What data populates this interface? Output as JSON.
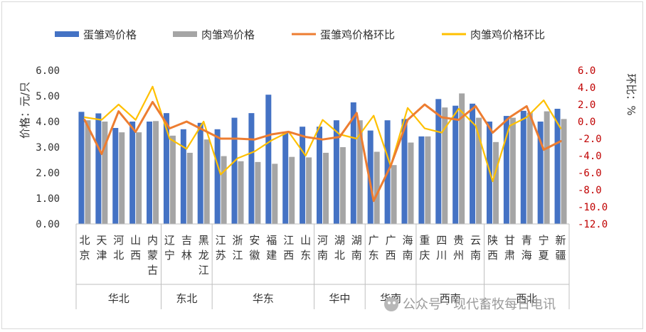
{
  "chart_data": {
    "type": "bar",
    "categories": [
      "北京",
      "天津",
      "河北",
      "山西",
      "内蒙古",
      "辽宁",
      "吉林",
      "黑龙江",
      "江苏",
      "浙江",
      "安徽",
      "福建",
      "江西",
      "山东",
      "河南",
      "湖北",
      "湖南",
      "广东",
      "广西",
      "海南",
      "重庆",
      "四川",
      "贵州",
      "云南",
      "陕西",
      "甘肃",
      "青海",
      "宁夏",
      "新疆"
    ],
    "regions": [
      {
        "name": "华北",
        "count": 5
      },
      {
        "name": "东北",
        "count": 3
      },
      {
        "name": "华东",
        "count": 6
      },
      {
        "name": "华中",
        "count": 3
      },
      {
        "name": "华南",
        "count": 3
      },
      {
        "name": "西南",
        "count": 4
      },
      {
        "name": "西北",
        "count": 5
      }
    ],
    "series": [
      {
        "name": "蛋雏鸡价格",
        "type": "bar",
        "axis": "left",
        "color": "#4472c4",
        "values": [
          4.38,
          4.32,
          3.75,
          4.0,
          4.0,
          4.33,
          3.7,
          3.95,
          3.7,
          4.15,
          4.33,
          5.05,
          3.6,
          3.8,
          3.8,
          4.05,
          4.75,
          3.65,
          4.05,
          4.1,
          3.42,
          4.88,
          4.62,
          4.7,
          4.0,
          4.22,
          4.42,
          4.0,
          4.5
        ]
      },
      {
        "name": "肉雏鸡价格",
        "type": "bar",
        "axis": "left",
        "color": "#a5a5a5",
        "values": [
          4.05,
          4.0,
          3.58,
          3.58,
          4.02,
          3.45,
          2.78,
          3.3,
          2.65,
          2.45,
          2.42,
          2.35,
          2.62,
          2.6,
          2.78,
          3.0,
          4.05,
          2.82,
          2.3,
          3.18,
          3.42,
          4.55,
          5.1,
          4.15,
          3.2,
          4.15,
          4.35,
          4.4,
          4.1
        ]
      },
      {
        "name": "蛋雏鸡价格环比",
        "type": "line",
        "axis": "right",
        "color": "#ed7d31",
        "values": [
          0.2,
          -3.8,
          1.2,
          -1.2,
          2.3,
          -0.8,
          0.0,
          -1.0,
          -2.0,
          -2.0,
          -2.1,
          -1.5,
          -1.2,
          -1.8,
          -2.1,
          -1.8,
          1.0,
          -9.3,
          -5.2,
          0.2,
          2.0,
          0.5,
          0.2,
          1.8,
          -1.3,
          0.5,
          1.8,
          -3.3,
          -2.3
        ]
      },
      {
        "name": "肉雏鸡价格环比",
        "type": "line",
        "axis": "right",
        "color": "#ffc000",
        "values": [
          0.5,
          0.2,
          2.0,
          0.2,
          4.1,
          -2.0,
          -3.2,
          0.0,
          -6.2,
          -4.3,
          -3.5,
          -2.2,
          -1.2,
          -4.0,
          0.2,
          -1.5,
          -2.0,
          0.7,
          -5.2,
          1.6,
          -0.8,
          -1.3,
          1.5,
          -0.5,
          -7.0,
          -0.5,
          0.5,
          2.5,
          -0.8
        ]
      }
    ],
    "y_left": {
      "label": "价格：元/只",
      "min": 0,
      "max": 6,
      "ticks": [
        "0.00",
        "1.00",
        "2.00",
        "3.00",
        "4.00",
        "5.00",
        "6.00"
      ]
    },
    "y_right": {
      "label": "环比：%",
      "min": -12,
      "max": 6,
      "ticks": [
        "6.0",
        "4.0",
        "2.0",
        "0.0",
        "-2.0",
        "-4.0",
        "-6.0",
        "-8.0",
        "-10.0",
        "-12.0"
      ]
    },
    "legend": "top",
    "grid": false
  },
  "watermark": "公众号 · 现代畜牧每日电讯"
}
